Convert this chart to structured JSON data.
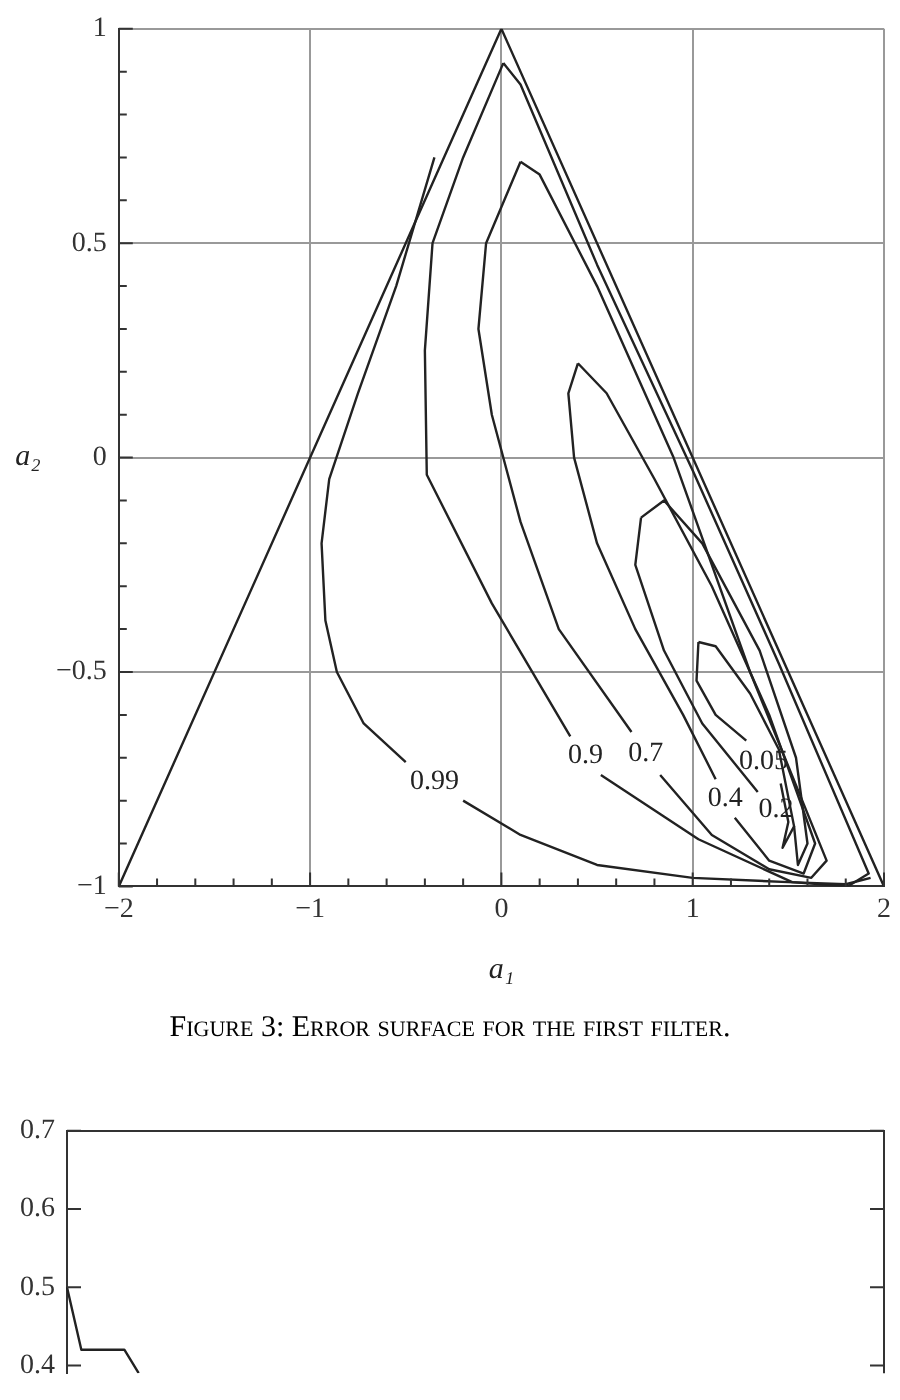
{
  "chart_data": [
    {
      "type": "line",
      "xlabel": "a₁",
      "ylabel": "a₂",
      "xlim": [
        -2,
        2
      ],
      "ylim": [
        -1,
        1
      ],
      "xticks": [
        {
          "value": -2,
          "label": "−2"
        },
        {
          "value": -1.8,
          "label": null
        },
        {
          "value": -1.6,
          "label": null
        },
        {
          "value": -1.4,
          "label": null
        },
        {
          "value": -1.2,
          "label": null
        },
        {
          "value": -1,
          "label": "−1"
        },
        {
          "value": -0.8,
          "label": null
        },
        {
          "value": -0.6,
          "label": null
        },
        {
          "value": -0.4,
          "label": null
        },
        {
          "value": -0.2,
          "label": null
        },
        0,
        {
          "value": 0.2,
          "label": null
        },
        {
          "value": 0.4,
          "label": null
        },
        {
          "value": 0.6,
          "label": null
        },
        {
          "value": 0.8,
          "label": null
        },
        1,
        {
          "value": 1.2,
          "label": null
        },
        {
          "value": 1.4,
          "label": null
        },
        {
          "value": 1.6,
          "label": null
        },
        {
          "value": 1.8,
          "label": null
        },
        2
      ],
      "yticks": [
        {
          "value": -1,
          "label": "−1"
        },
        {
          "value": -0.9,
          "label": null
        },
        {
          "value": -0.8,
          "label": null
        },
        {
          "value": -0.7,
          "label": null
        },
        {
          "value": -0.6,
          "label": null
        },
        {
          "value": -0.5,
          "label": "−0.5"
        },
        {
          "value": -0.4,
          "label": null
        },
        {
          "value": -0.3,
          "label": null
        },
        {
          "value": -0.2,
          "label": null
        },
        {
          "value": -0.1,
          "label": null
        },
        0,
        {
          "value": 0.1,
          "label": null
        },
        {
          "value": 0.2,
          "label": null
        },
        {
          "value": 0.3,
          "label": null
        },
        {
          "value": 0.4,
          "label": null
        },
        0.5,
        {
          "value": 0.6,
          "label": null
        },
        {
          "value": 0.7,
          "label": null
        },
        {
          "value": 0.8,
          "label": null
        },
        {
          "value": 0.9,
          "label": null
        },
        1
      ],
      "grid": true,
      "series": [
        {
          "color": "#222222",
          "x": [
            -2,
            0,
            2
          ],
          "values": [
            -1,
            1,
            -1
          ]
        },
        {
          "name": "0.99",
          "color": "#222222",
          "x": [
            -0.35,
            -0.55,
            -0.75,
            -0.9,
            -0.94,
            -0.92,
            -0.86,
            -0.72,
            -0.5,
            -0.35,
            -0.2,
            0.1,
            0.5,
            1.0,
            1.5,
            1.8,
            1.93
          ],
          "values": [
            0.7,
            0.4,
            0.15,
            -0.05,
            -0.2,
            -0.38,
            -0.5,
            -0.62,
            -0.71,
            null,
            -0.8,
            -0.88,
            -0.95,
            -0.98,
            -0.99,
            -0.995,
            -0.98
          ]
        },
        {
          "name": "0.9",
          "color": "#222222",
          "x": [
            0.01,
            -0.2,
            -0.36,
            -0.4,
            -0.39,
            -0.05,
            0.36,
            0.44,
            0.52,
            1.03,
            1.52,
            1.81,
            1.92,
            1.45,
            1.0,
            0.5,
            0.1,
            0.01
          ],
          "values": [
            0.92,
            0.7,
            0.5,
            0.25,
            -0.04,
            -0.34,
            -0.65,
            null,
            -0.74,
            -0.89,
            -0.99,
            -1.0,
            -0.97,
            -0.48,
            -0.03,
            0.45,
            0.87,
            0.92
          ]
        },
        {
          "name": "0.7",
          "color": "#222222",
          "x": [
            0.1,
            -0.08,
            -0.12,
            -0.05,
            0.1,
            0.3,
            0.68,
            0.75,
            0.83,
            1.1,
            1.4,
            1.62,
            1.7,
            1.3,
            0.9,
            0.5,
            0.2,
            0.1
          ],
          "values": [
            0.69,
            0.5,
            0.3,
            0.1,
            -0.15,
            -0.4,
            -0.64,
            null,
            -0.74,
            -0.88,
            -0.96,
            -0.98,
            -0.94,
            -0.5,
            0.0,
            0.4,
            0.66,
            0.69
          ]
        },
        {
          "name": "0.4",
          "color": "#222222",
          "x": [
            0.4,
            0.35,
            0.38,
            0.5,
            0.7,
            0.95,
            1.12,
            1.17,
            1.22,
            1.4,
            1.58,
            1.64,
            1.4,
            1.1,
            0.8,
            0.55,
            0.4
          ],
          "values": [
            0.22,
            0.15,
            0.0,
            -0.2,
            -0.4,
            -0.6,
            -0.75,
            null,
            -0.84,
            -0.94,
            -0.97,
            -0.9,
            -0.6,
            -0.3,
            -0.05,
            0.15,
            0.22
          ]
        },
        {
          "name": "0.2",
          "color": "#222222",
          "x": [
            0.73,
            0.7,
            0.85,
            1.05,
            1.34,
            1.44,
            1.53,
            1.55,
            1.6,
            1.54,
            1.35,
            1.05,
            0.85,
            0.73
          ],
          "values": [
            -0.14,
            -0.25,
            -0.45,
            -0.62,
            -0.78,
            null,
            -0.86,
            -0.95,
            -0.9,
            -0.7,
            -0.45,
            -0.2,
            -0.1,
            -0.14
          ]
        },
        {
          "name": "0.05",
          "color": "#222222",
          "x": [
            1.03,
            1.02,
            1.12,
            1.28,
            1.37,
            1.46,
            1.5,
            1.47,
            1.53,
            1.45,
            1.3,
            1.12,
            1.03
          ],
          "values": [
            -0.43,
            -0.52,
            -0.6,
            -0.66,
            null,
            -0.76,
            -0.85,
            -0.91,
            -0.86,
            -0.68,
            -0.55,
            -0.44,
            -0.43
          ]
        }
      ],
      "annotations": [
        "Figure 3: Error surface for the first filter."
      ]
    },
    {
      "type": "line",
      "ylim": [
        0.39,
        0.7
      ],
      "tick_labels": "y",
      "yticks": [
        0.4,
        0.5,
        0.6,
        0.7
      ],
      "categories": [
        null,
        null,
        null,
        null,
        null,
        null,
        null,
        null,
        null,
        null,
        null,
        null,
        null,
        null,
        null,
        null,
        null,
        null,
        null,
        null,
        null,
        null,
        null,
        null,
        null,
        null,
        null,
        null,
        null,
        null,
        null,
        null,
        null,
        null,
        null,
        null,
        null,
        null,
        null,
        null,
        null,
        null,
        null,
        null,
        null,
        null,
        null,
        null,
        null,
        null,
        null,
        null,
        null,
        null,
        null,
        null,
        null,
        null
      ],
      "series": [
        {
          "color": "#222222",
          "values": [
            0.5,
            0.42,
            0.42,
            0.42,
            0.42,
            0.39,
            null,
            null,
            null,
            null,
            null,
            null,
            null,
            null,
            null,
            null,
            null,
            null,
            null,
            null,
            null,
            null,
            null,
            null,
            null,
            null,
            null,
            null,
            null,
            null,
            null,
            null,
            null,
            null,
            null,
            null,
            null,
            null,
            null,
            null,
            null,
            null,
            null,
            null,
            null,
            null,
            null,
            null,
            null,
            null,
            null,
            null,
            null,
            null,
            null,
            null,
            null,
            null
          ]
        }
      ]
    }
  ]
}
